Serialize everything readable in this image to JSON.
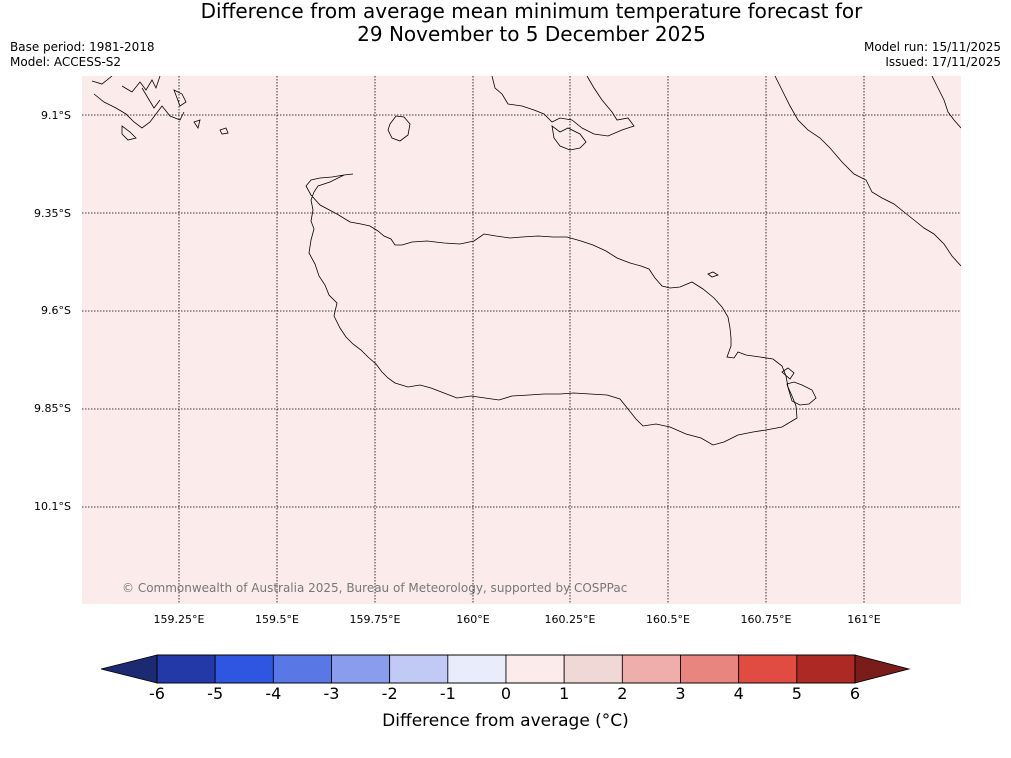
{
  "header": {
    "title_line1": "Difference from average mean minimum temperature forecast for",
    "title_line2": "29 November to 5 December 2025",
    "base_period": "Base period: 1981-2018",
    "model": "Model: ACCESS-S2",
    "model_run": "Model run: 15/11/2025",
    "issued": "Issued: 17/11/2025"
  },
  "map": {
    "background_color": "#fbeceb",
    "copyright": "© Commonwealth of Australia 2025, Bureau of Meteorology, supported by COSPPac",
    "lat_labels": [
      "9.1°S",
      "9.35°S",
      "9.6°S",
      "9.85°S",
      "10.1°S"
    ],
    "lon_labels": [
      "159.25°E",
      "159.5°E",
      "159.75°E",
      "160°E",
      "160.25°E",
      "160.5°E",
      "160.75°E",
      "161°E"
    ]
  },
  "colorbar": {
    "label": "Difference from average (°C)",
    "ticks": [
      "-6",
      "-5",
      "-4",
      "-3",
      "-2",
      "-1",
      "0",
      "1",
      "2",
      "3",
      "4",
      "5",
      "6"
    ],
    "under_color": "#1c2a72",
    "over_color": "#7a1c1a",
    "colors": [
      "#2439a8",
      "#2f56e0",
      "#5a77e6",
      "#8a9cec",
      "#c1c9f5",
      "#e9ecfb",
      "#fbeceb",
      "#efd8d5",
      "#efaeab",
      "#e8857f",
      "#e04c42",
      "#ad2a24"
    ]
  }
}
